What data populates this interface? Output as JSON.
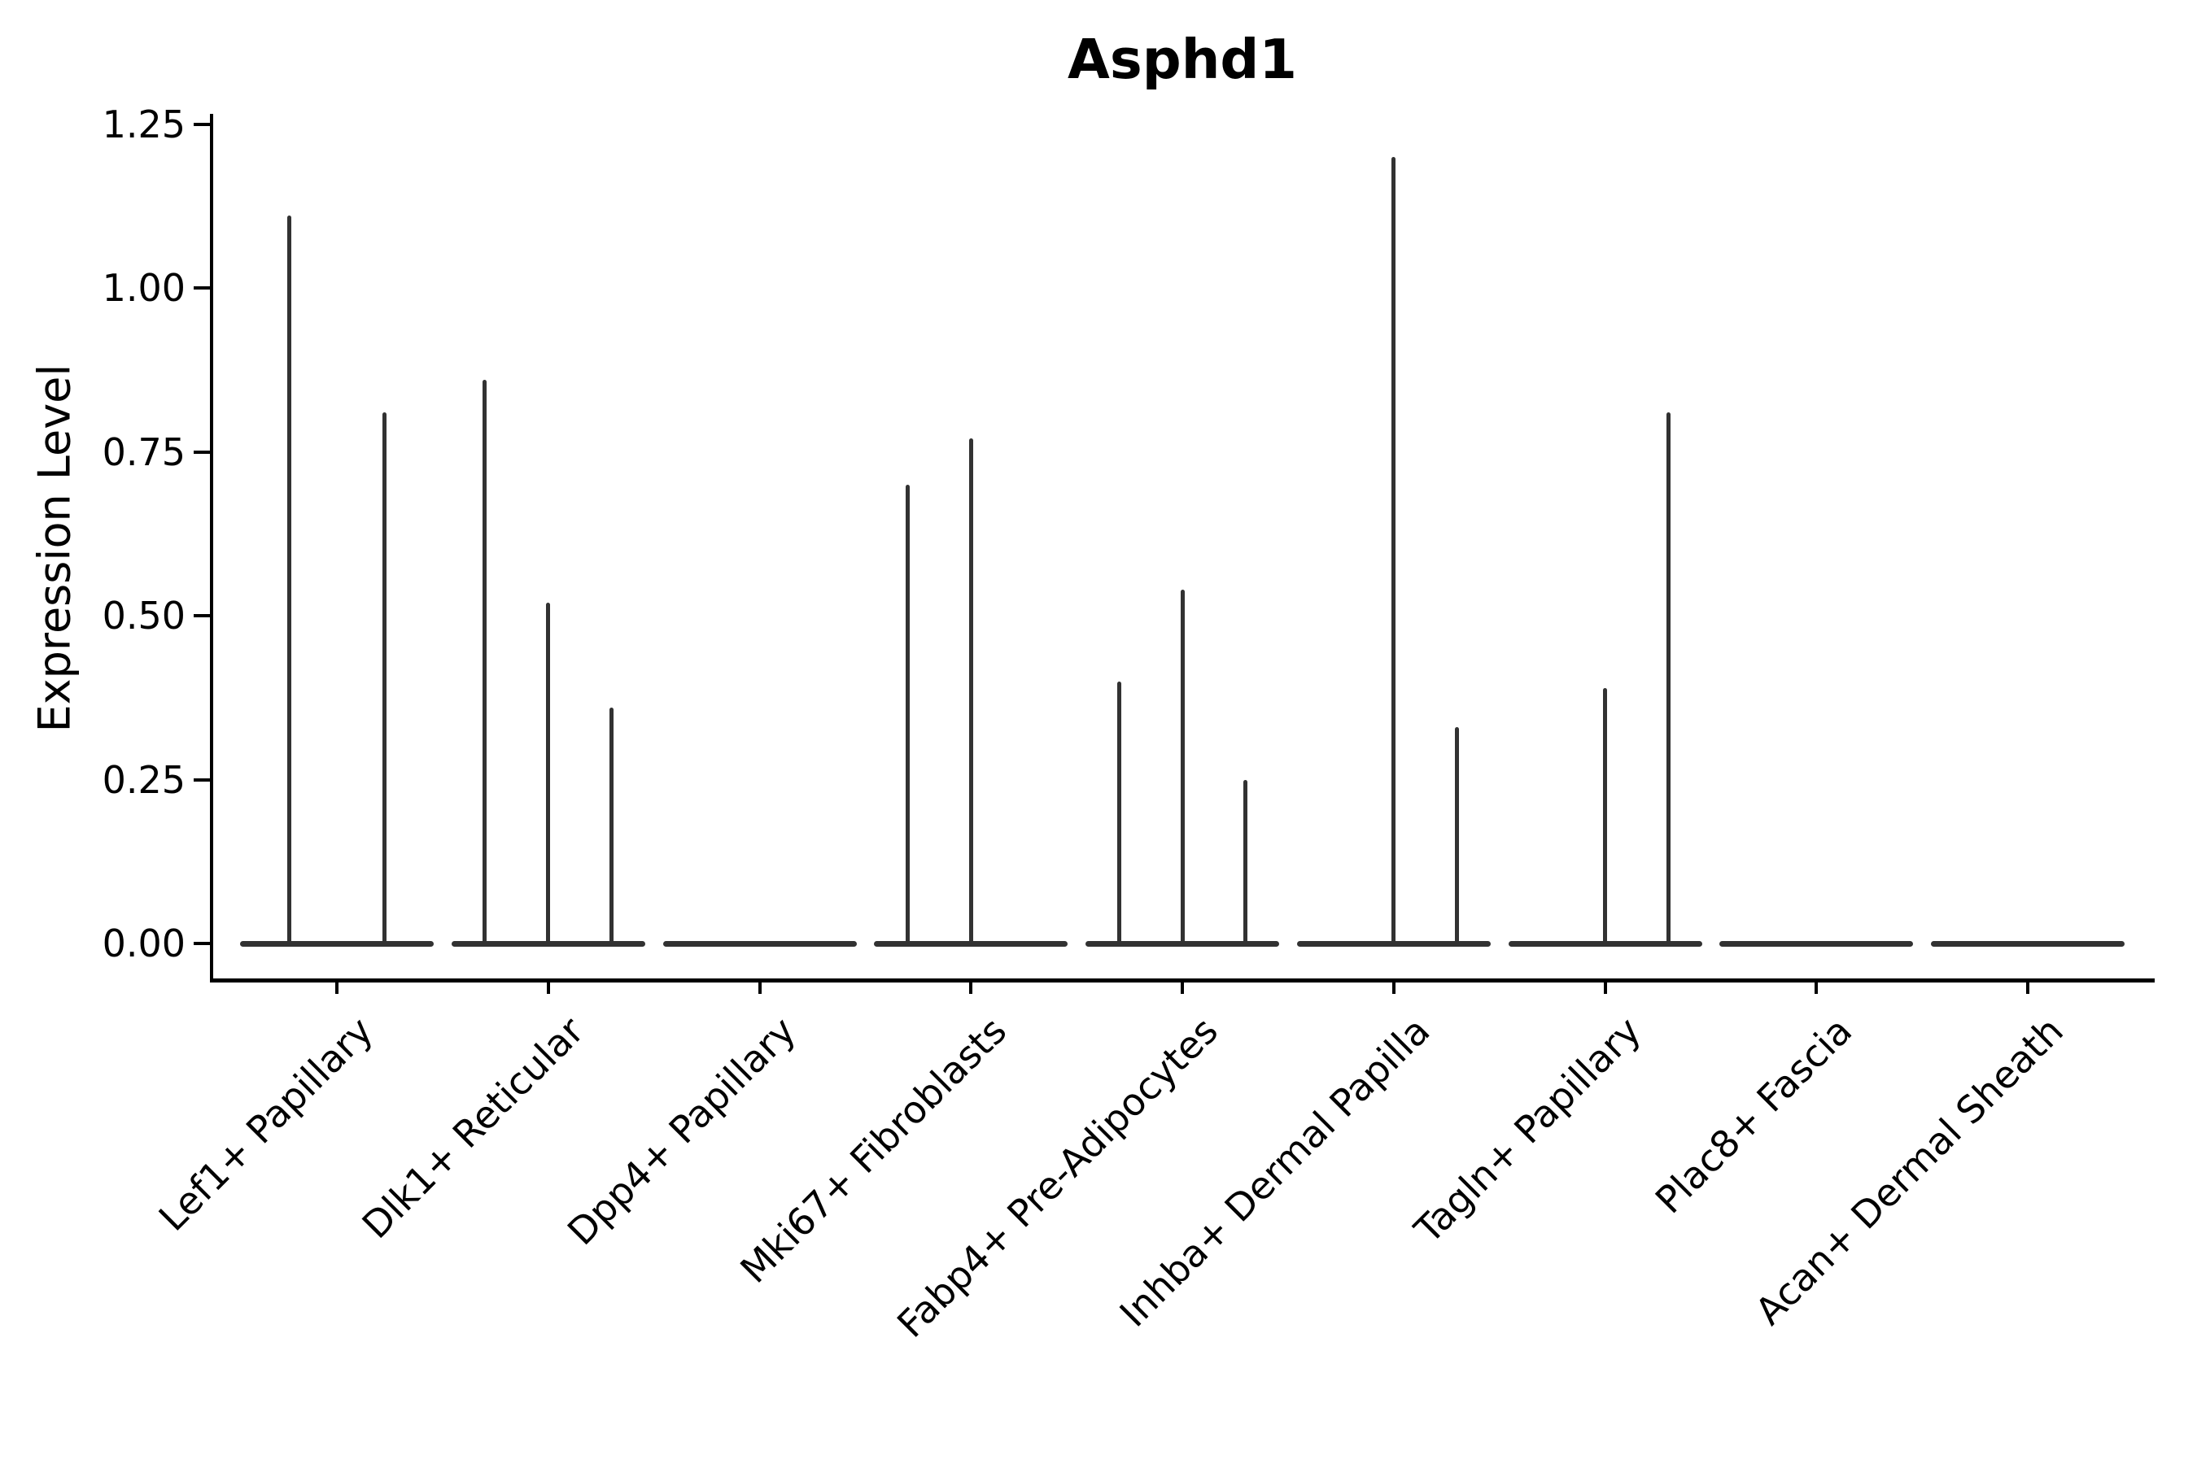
{
  "figure": {
    "background": "#ffffff",
    "text_color": "#000000"
  },
  "chart_data": {
    "type": "violin",
    "title": "Asphd1",
    "ylabel": "Expression Level",
    "xlabel": "",
    "grid": false,
    "legend_position": "none",
    "violin_color": "#323232",
    "axis_color": "#000000",
    "ylim": [
      -0.06,
      1.265
    ],
    "yticks": [
      {
        "label": "0.00",
        "value": 0.0
      },
      {
        "label": "0.25",
        "value": 0.25
      },
      {
        "label": "0.50",
        "value": 0.5
      },
      {
        "label": "0.75",
        "value": 0.75
      },
      {
        "label": "1.00",
        "value": 1.0
      },
      {
        "label": "1.25",
        "value": 1.25
      }
    ],
    "categories": [
      "Lef1+ Papillary",
      "Dlk1+ Reticular",
      "Dpp4+ Papillary",
      "Mki67+ Fibroblasts",
      "Fabp4+ Pre-Adipocytes",
      "Inhba+ Dermal Papilla",
      "Tagln+ Papillary",
      "Plac8+ Fascia",
      "Acan+ Dermal Sheath"
    ],
    "violins": [
      {
        "category": "Lef1+ Papillary",
        "baseline_value": 0,
        "spikes": [
          {
            "x_offset": -0.225,
            "value": 1.11
          },
          {
            "x_offset": 0.225,
            "value": 0.81
          }
        ]
      },
      {
        "category": "Dlk1+ Reticular",
        "baseline_value": 0,
        "spikes": [
          {
            "x_offset": -0.3,
            "value": 0.86
          },
          {
            "x_offset": 0.0,
            "value": 0.52
          },
          {
            "x_offset": 0.3,
            "value": 0.36
          }
        ]
      },
      {
        "category": "Dpp4+ Papillary",
        "baseline_value": 0,
        "spikes": []
      },
      {
        "category": "Mki67+ Fibroblasts",
        "baseline_value": 0,
        "spikes": [
          {
            "x_offset": -0.3,
            "value": 0.7
          },
          {
            "x_offset": 0.0,
            "value": 0.77
          }
        ]
      },
      {
        "category": "Fabp4+ Pre-Adipocytes",
        "baseline_value": 0,
        "spikes": [
          {
            "x_offset": -0.3,
            "value": 0.4
          },
          {
            "x_offset": 0.0,
            "value": 0.54
          },
          {
            "x_offset": 0.3,
            "value": 0.25
          }
        ]
      },
      {
        "category": "Inhba+ Dermal Papilla",
        "baseline_value": 0,
        "spikes": [
          {
            "x_offset": 0.0,
            "value": 1.2
          },
          {
            "x_offset": 0.3,
            "value": 0.33
          }
        ]
      },
      {
        "category": "Tagln+ Papillary",
        "baseline_value": 0,
        "spikes": [
          {
            "x_offset": 0.0,
            "value": 0.39
          },
          {
            "x_offset": 0.3,
            "value": 0.81
          }
        ]
      },
      {
        "category": "Plac8+ Fascia",
        "baseline_value": 0,
        "spikes": []
      },
      {
        "category": "Acan+ Dermal Sheath",
        "baseline_value": 0,
        "spikes": []
      }
    ]
  }
}
